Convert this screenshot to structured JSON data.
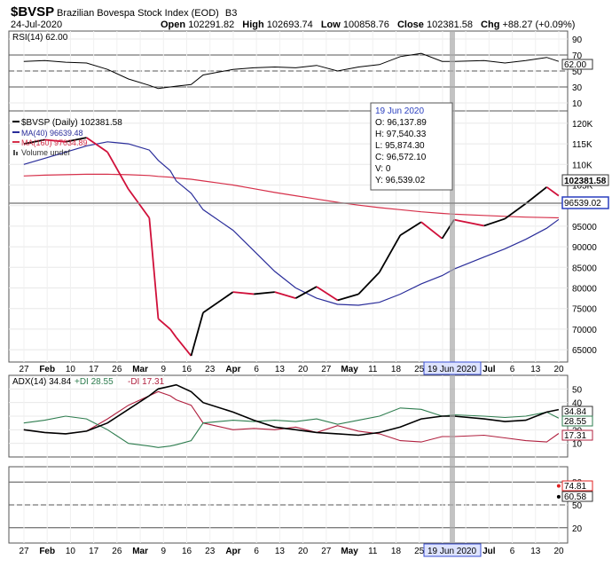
{
  "header": {
    "symbol": "$BVSP",
    "name": "Brazilian Bovespa Stock Index (EOD)",
    "exchange": "B3",
    "date": "24-Jul-2020",
    "open_label": "Open",
    "open": "102291.82",
    "high_label": "High",
    "high": "102693.74",
    "low_label": "Low",
    "low": "100858.76",
    "close_label": "Close",
    "close": "102381.58",
    "chg_label": "Chg",
    "chg": "+88.27 (+0.09%)"
  },
  "rsi_panel": {
    "legend": "RSI(14) 62.00",
    "value_tag": "62.00",
    "ticks": [
      "90",
      "70",
      "50",
      "30",
      "10"
    ]
  },
  "price_panel": {
    "legend_price": "$BVSP (Daily) 102381.58",
    "legend_ma40": "MA(40) 96639.48",
    "legend_ma160": "MA(160) 97034.89",
    "legend_volume": "Volume undef",
    "price_tag": "102381.58",
    "crosshair_tag": "96539.02",
    "ticks": [
      "120K",
      "115K",
      "110K",
      "105K",
      "100K",
      "95000",
      "90000",
      "85000",
      "80000",
      "75000",
      "70000",
      "65000"
    ],
    "tooltip": {
      "date": "19 Jun 2020",
      "open": "O: 96,137.89",
      "high": "H: 97,540.33",
      "low": "L: 95,874.30",
      "close": "C: 96,572.10",
      "volume": "V: 0",
      "y": "Y: 96,539.02"
    }
  },
  "adx_panel": {
    "legend_adx": "ADX(14) 34.84",
    "legend_pdi": "+DI 28.55",
    "legend_mdi": "-DI 17.31",
    "tag_adx": "34.84",
    "tag_pdi": "28.55",
    "tag_mdi": "17.31",
    "ticks": [
      "50",
      "40",
      "30",
      "20",
      "10"
    ]
  },
  "stoch_panel": {
    "tag_k": "74.81",
    "tag_d": "60.58",
    "ticks": [
      "80",
      "50",
      "20"
    ]
  },
  "x_axis": {
    "labels": [
      "27",
      "Feb",
      "10",
      "17",
      "26",
      "Mar",
      "9",
      "16",
      "23",
      "Apr",
      "6",
      "13",
      "20",
      "27",
      "May",
      "11",
      "18",
      "25",
      "Jun",
      "8",
      "Jul",
      "6",
      "13",
      "20"
    ],
    "highlight": "19 Jun 2020"
  },
  "colors": {
    "price": "#000000",
    "price_down": "#d0103a",
    "ma40": "#2a2d9a",
    "ma160": "#d6304a",
    "rsi": "#000000",
    "rsi_fill": "#2f7a4a",
    "adx": "#000000",
    "pdi": "#2e7d4f",
    "mdi": "#b0203f",
    "stoch_k": "#000000",
    "stoch_d": "#e02020"
  },
  "chart_data": {
    "type": "line",
    "title": "$BVSP Brazilian Bovespa Stock Index (EOD)",
    "x": [
      "2020-01-27",
      "2020-02-03",
      "2020-02-10",
      "2020-02-17",
      "2020-02-24",
      "2020-03-02",
      "2020-03-09",
      "2020-03-12",
      "2020-03-16",
      "2020-03-18",
      "2020-03-23",
      "2020-03-27",
      "2020-04-06",
      "2020-04-13",
      "2020-04-20",
      "2020-04-27",
      "2020-05-04",
      "2020-05-11",
      "2020-05-18",
      "2020-05-25",
      "2020-06-01",
      "2020-06-08",
      "2020-06-15",
      "2020-06-19",
      "2020-06-29",
      "2020-07-06",
      "2020-07-13",
      "2020-07-20",
      "2020-07-24"
    ],
    "series": [
      {
        "name": "$BVSP (Daily)",
        "values": [
          115000,
          116000,
          115500,
          116500,
          113000,
          104000,
          97000,
          72500,
          70000,
          68000,
          63500,
          74000,
          79000,
          78500,
          79000,
          77500,
          80300,
          77000,
          78500,
          83800,
          92800,
          96000,
          92000,
          96570,
          95100,
          96800,
          100500,
          104500,
          102381.58
        ]
      },
      {
        "name": "MA(40)",
        "values": [
          110000,
          111500,
          113000,
          114500,
          115500,
          115000,
          113500,
          111000,
          108500,
          106000,
          103000,
          99000,
          94000,
          89000,
          84000,
          80000,
          77500,
          76000,
          75800,
          76500,
          78500,
          81000,
          83000,
          84600,
          87500,
          89500,
          91800,
          94500,
          96639.48
        ]
      },
      {
        "name": "MA(160)",
        "values": [
          107200,
          107400,
          107500,
          107600,
          107600,
          107500,
          107300,
          107100,
          106900,
          106700,
          106400,
          106000,
          105000,
          104100,
          103200,
          102400,
          101600,
          100800,
          100100,
          99500,
          99000,
          98500,
          98100,
          97900,
          97600,
          97400,
          97200,
          97100,
          97034.89
        ]
      },
      {
        "name": "RSI(14)",
        "values": [
          62,
          63,
          61,
          60,
          52,
          40,
          32,
          28,
          30,
          31,
          33,
          45,
          52,
          54,
          55,
          54,
          57,
          50,
          55,
          58,
          68,
          72,
          62,
          62,
          63,
          60,
          63,
          67,
          62.0
        ]
      },
      {
        "name": "ADX(14)",
        "values": [
          20,
          18,
          17,
          19,
          25,
          35,
          45,
          50,
          52,
          53,
          48,
          40,
          33,
          27,
          22,
          20,
          18,
          17,
          16,
          18,
          22,
          28,
          30,
          30,
          28,
          26,
          27,
          33,
          34.84
        ]
      },
      {
        "name": "+DI",
        "values": [
          25,
          27,
          30,
          28,
          20,
          10,
          8,
          7,
          8,
          9,
          12,
          25,
          27,
          26,
          27,
          26,
          28,
          24,
          27,
          30,
          36,
          35,
          30,
          31,
          30,
          29,
          30,
          33,
          28.55
        ]
      },
      {
        "name": "-DI",
        "values": [
          20,
          18,
          17,
          19,
          28,
          38,
          45,
          48,
          45,
          42,
          38,
          25,
          20,
          21,
          20,
          22,
          18,
          23,
          19,
          17,
          12,
          11,
          15,
          15,
          16,
          14,
          12,
          11,
          17.31
        ]
      }
    ],
    "ylim": [
      62000,
      123000
    ],
    "rsi_ylim": [
      0,
      100
    ],
    "adx_ylim": [
      0,
      60
    ],
    "stoch_ylim": [
      0,
      100
    ],
    "stoch_k_last": 74.81,
    "stoch_d_last": 60.58
  }
}
